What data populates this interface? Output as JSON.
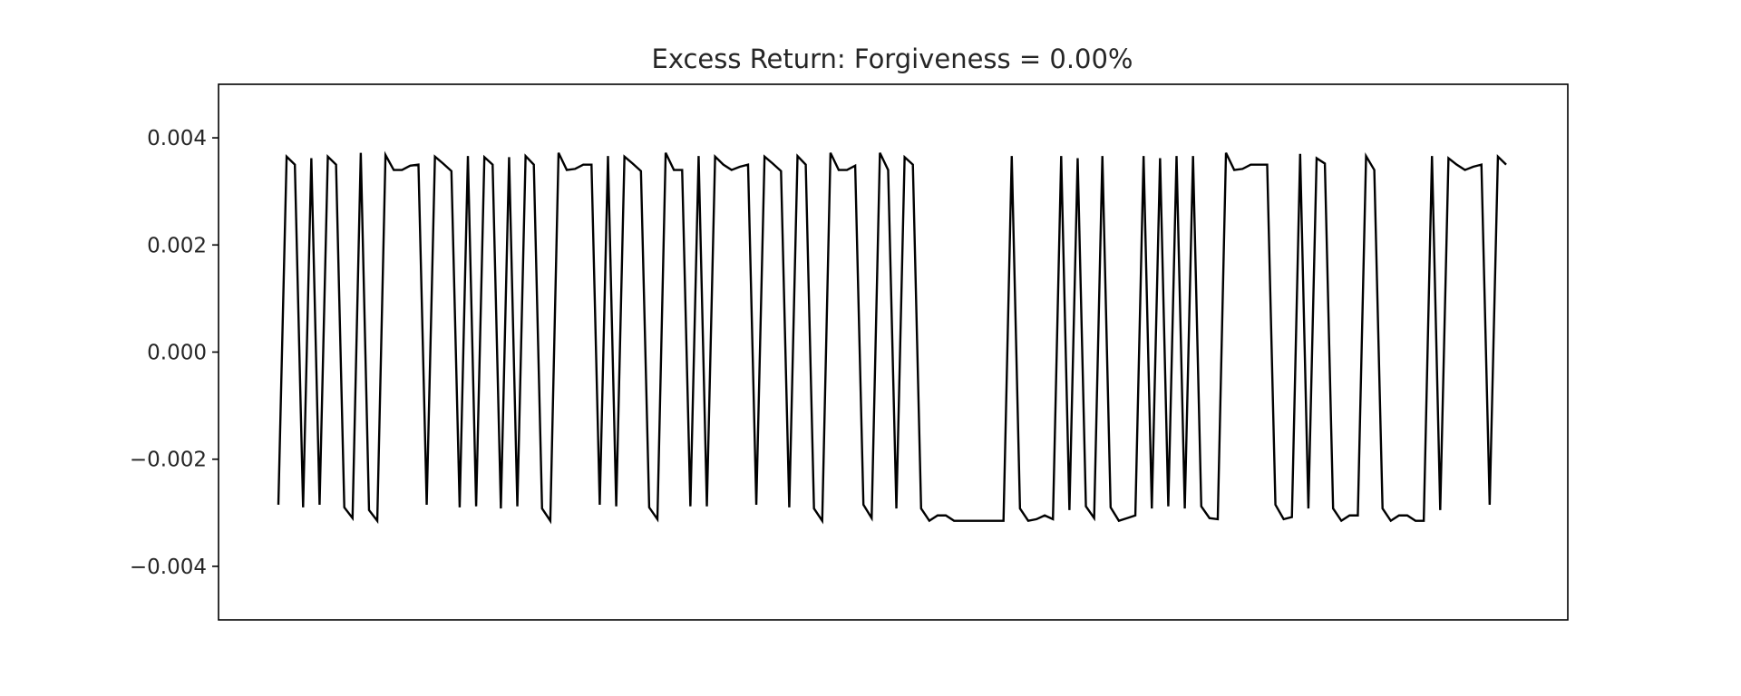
{
  "chart_data": {
    "type": "line",
    "title": "Excess Return: Forgiveness = 0.00%",
    "xlabel": "",
    "ylabel": "",
    "x_ticks_shown": false,
    "ylim": [
      -0.005,
      0.005
    ],
    "yticks": [
      {
        "value": 0.004,
        "label": "0.004"
      },
      {
        "value": 0.002,
        "label": "0.002"
      },
      {
        "value": 0.0,
        "label": "0.000"
      },
      {
        "value": -0.002,
        "label": "−0.002"
      },
      {
        "value": -0.004,
        "label": "−0.004"
      }
    ],
    "grid": false,
    "legend": "none",
    "series": [
      {
        "color": "#000000",
        "values": [
          -0.00285,
          0.00365,
          0.0035,
          -0.0029,
          0.00362,
          -0.00285,
          0.00365,
          0.0035,
          -0.0029,
          -0.0031,
          0.00372,
          -0.00295,
          -0.00315,
          0.00368,
          0.0034,
          0.0034,
          0.00348,
          0.0035,
          -0.00285,
          0.00365,
          0.00352,
          0.00338,
          -0.0029,
          0.00366,
          -0.00288,
          0.00364,
          0.0035,
          -0.00292,
          0.00364,
          -0.00288,
          0.00366,
          0.0035,
          -0.00292,
          -0.00315,
          0.00372,
          0.0034,
          0.00342,
          0.0035,
          0.0035,
          -0.00285,
          0.00366,
          -0.00288,
          0.00365,
          0.00352,
          0.00338,
          -0.0029,
          -0.00312,
          0.00372,
          0.0034,
          0.0034,
          -0.00288,
          0.00366,
          -0.00288,
          0.00365,
          0.0035,
          0.0034,
          0.00346,
          0.0035,
          -0.00285,
          0.00365,
          0.00352,
          0.00338,
          -0.0029,
          0.00366,
          0.0035,
          -0.00292,
          -0.00315,
          0.00372,
          0.0034,
          0.0034,
          0.00348,
          -0.00285,
          -0.0031,
          0.00372,
          0.0034,
          -0.00292,
          0.00364,
          0.0035,
          -0.00292,
          -0.00315,
          -0.00305,
          -0.00305,
          -0.00315,
          -0.00315,
          -0.00315,
          -0.00315,
          -0.00315,
          -0.00315,
          -0.00315,
          0.00366,
          -0.00292,
          -0.00315,
          -0.00312,
          -0.00305,
          -0.00312,
          0.00366,
          -0.00295,
          0.00362,
          -0.00288,
          -0.0031,
          0.00366,
          -0.0029,
          -0.00315,
          -0.0031,
          -0.00305,
          0.00366,
          -0.00292,
          0.00362,
          -0.00288,
          0.00366,
          -0.00292,
          0.00366,
          -0.00288,
          -0.0031,
          -0.00312,
          0.00372,
          0.0034,
          0.00342,
          0.0035,
          0.0035,
          0.0035,
          -0.00285,
          -0.00312,
          -0.00308,
          0.0037,
          -0.00292,
          0.00362,
          0.00352,
          -0.00292,
          -0.00315,
          -0.00305,
          -0.00305,
          0.00366,
          0.0034,
          -0.00292,
          -0.00315,
          -0.00305,
          -0.00305,
          -0.00315,
          -0.00315,
          0.00366,
          -0.00295,
          0.00362,
          0.0035,
          0.0034,
          0.00346,
          0.0035,
          -0.00285,
          0.00365,
          0.0035
        ]
      }
    ]
  }
}
